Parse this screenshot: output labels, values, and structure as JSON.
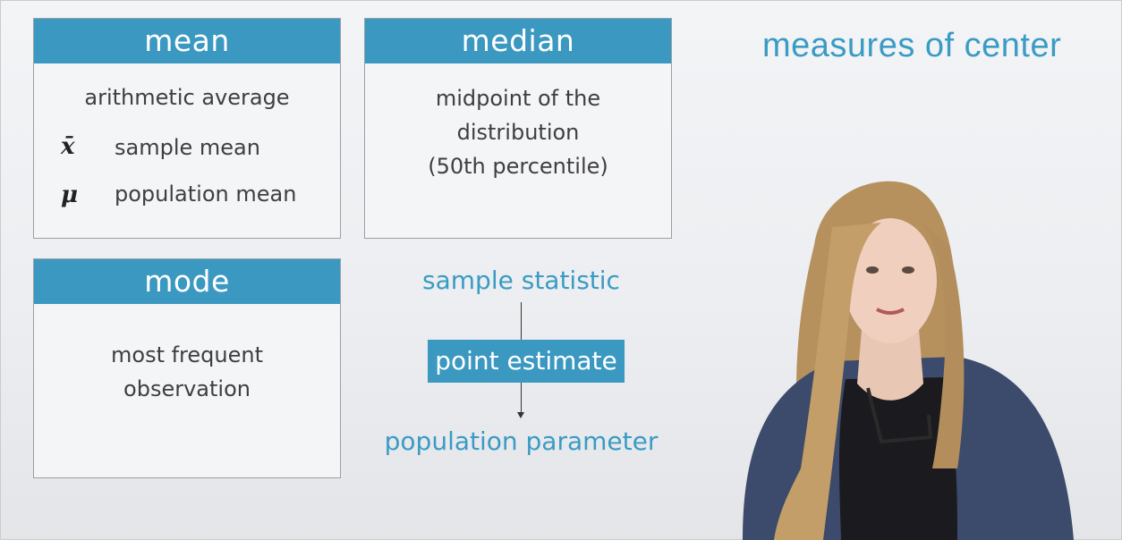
{
  "title": "measures of center",
  "mean_card": {
    "header": "mean",
    "definition": "arithmetic average",
    "symbols": [
      {
        "symbol": "x̄",
        "label": "sample mean"
      },
      {
        "symbol": "μ",
        "label": "population mean"
      }
    ]
  },
  "median_card": {
    "header": "median",
    "lines": [
      "midpoint of the",
      "distribution",
      "(50th percentile)"
    ]
  },
  "mode_card": {
    "header": "mode",
    "lines": [
      "most frequent",
      "observation"
    ]
  },
  "flow": {
    "top": "sample statistic",
    "middle": "point estimate",
    "bottom": "population parameter"
  },
  "colors": {
    "accent": "#3b98c1",
    "text": "#3f3f3f"
  }
}
